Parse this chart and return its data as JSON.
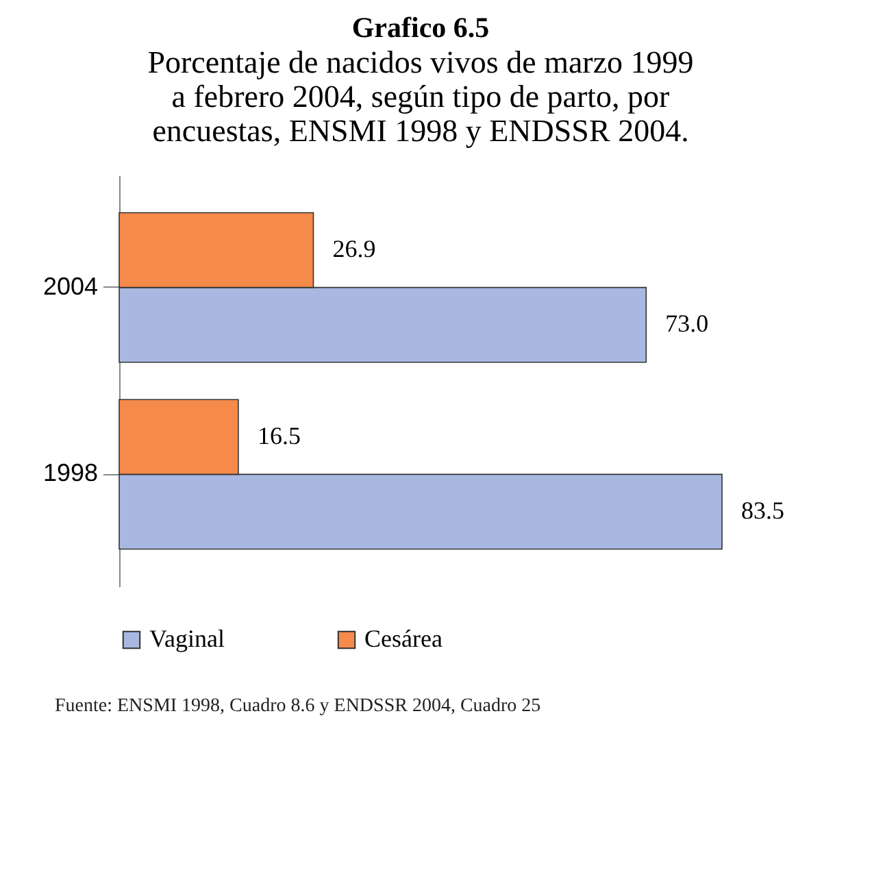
{
  "chart_data": {
    "type": "bar",
    "orientation": "horizontal",
    "title": "Grafico 6.5",
    "subtitle": "Porcentaje de nacidos vivos de marzo 1999 a febrero 2004, según tipo de parto, por encuestas, ENSMI 1998 y ENDSSR 2004.",
    "categories": [
      "2004",
      "1998"
    ],
    "series": [
      {
        "name": "Vaginal",
        "color": "#a9b8e0",
        "values": [
          73.0,
          83.5
        ],
        "value_labels": [
          "73.0",
          "83.5"
        ]
      },
      {
        "name": "Cesárea",
        "color": "#f58a4b",
        "values": [
          26.9,
          16.5
        ],
        "value_labels": [
          "26.9",
          "16.5"
        ]
      }
    ],
    "legend": "bottom",
    "annotations": [
      "Fuente: ENSMI 1998, Cuadro 8.6 y ENDSSR 2004, Cuadro 25"
    ]
  }
}
